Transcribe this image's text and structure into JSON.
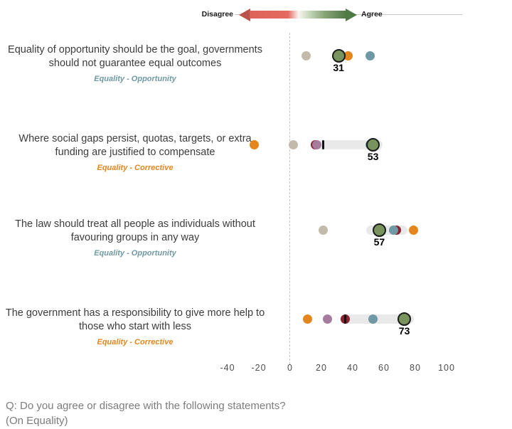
{
  "legend_arrow": {
    "disagree": "Disagree",
    "agree": "Agree"
  },
  "colors": {
    "tan": "#c3bba9",
    "orange": "#e2861d",
    "teal": "#6f99a4",
    "green": "#78935c",
    "purple": "#a67c9d",
    "darkred": "#8c2130",
    "bar": "#e9e9e9",
    "tick": "#111111",
    "highlight_stroke": "#1a1a1a",
    "category_opportunity": "#6f99a4",
    "category_corrective": "#e2861d"
  },
  "chart_data": {
    "type": "scatter",
    "title": "",
    "xlabel": "",
    "x_ticks": [
      -40,
      -20,
      0,
      20,
      40,
      60,
      80,
      100
    ],
    "x_range": [
      -40,
      100
    ],
    "zero_reference_line": true,
    "legend": {
      "left_label": "Disagree",
      "right_label": "Agree"
    },
    "rows": [
      {
        "statement": "Equality of opportunity should be the goal, governments should not guarantee equal outcomes",
        "category": "Equality - Opportunity",
        "category_color": "category_opportunity",
        "points": [
          {
            "series": "tan",
            "value": 10
          },
          {
            "series": "orange",
            "value": 37
          },
          {
            "series": "teal",
            "value": 51
          }
        ],
        "highlight": {
          "series": "green",
          "value": 31,
          "label": "31"
        },
        "bar": null,
        "tick": null
      },
      {
        "statement": "Where social gaps persist, quotas, targets, or extra funding are justified to compensate",
        "category": "Equality - Corrective",
        "category_color": "category_corrective",
        "points": [
          {
            "series": "orange",
            "value": -23
          },
          {
            "series": "tan",
            "value": 2
          },
          {
            "series": "darkred",
            "value": 16
          },
          {
            "series": "purple",
            "value": 17
          },
          {
            "series": "teal",
            "value": 51
          }
        ],
        "highlight": {
          "series": "green",
          "value": 53,
          "label": "53"
        },
        "bar": {
          "from": 21,
          "to": 56
        },
        "tick": 21
      },
      {
        "statement": "The law should treat all people as individuals without favouring groups in any way",
        "category": "Equality - Opportunity",
        "category_color": "category_opportunity",
        "points": [
          {
            "series": "tan",
            "value": 21
          },
          {
            "series": "darkred",
            "value": 68
          },
          {
            "series": "teal",
            "value": 66
          },
          {
            "series": "orange",
            "value": 79
          }
        ],
        "highlight": {
          "series": "green",
          "value": 57,
          "label": "57"
        },
        "bar": {
          "from": 52,
          "to": 72
        },
        "tick": null
      },
      {
        "statement": "The government has a responsibility to give more help to those who start with less",
        "category": "Equality - Corrective",
        "category_color": "category_corrective",
        "points": [
          {
            "series": "orange",
            "value": 11
          },
          {
            "series": "purple",
            "value": 24
          },
          {
            "series": "darkred",
            "value": 35
          },
          {
            "series": "teal",
            "value": 53
          }
        ],
        "highlight": {
          "series": "green",
          "value": 73,
          "label": "73"
        },
        "bar": {
          "from": 35,
          "to": 76
        },
        "tick": 35
      }
    ]
  },
  "footer": {
    "question_line1": "Q: Do you agree or disagree with the following statements?",
    "question_line2": "(On Equality)"
  }
}
